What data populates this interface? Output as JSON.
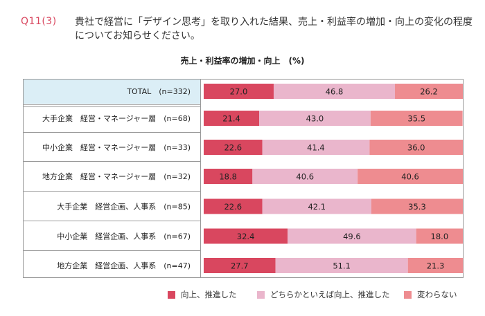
{
  "question": {
    "number": "Q11(3)",
    "text": "貴社で経営に「デザイン思考」を取り入れた結果、売上・利益率の増加・向上の変化の程度についてお知らせください。"
  },
  "colors": {
    "improved": "#d9475f",
    "somewhat": "#eab6cc",
    "unchanged": "#ee8c90",
    "grid": "#999999",
    "total_bg": "#dbeef6"
  },
  "chart_data": {
    "type": "bar",
    "orientation": "horizontal",
    "stacked": true,
    "title": "売上・利益率の増加・向上　(%)",
    "categories": [
      "TOTAL　(n=332)",
      "大手企業　経営・マネージャー層　(n=68)",
      "中小企業　経営・マネージャー層　(n=33)",
      "地方企業　経営・マネージャー層　(n=32)",
      "大手企業　経営企画、人事系　(n=85)",
      "中小企業　経営企画、人事系　(n=67)",
      "地方企業　経営企画、人事系　(n=47)"
    ],
    "series": [
      {
        "name": "向上、推進した",
        "values": [
          27.0,
          21.4,
          22.6,
          18.8,
          22.6,
          32.4,
          27.7
        ]
      },
      {
        "name": "どちらかといえば向上、推進した",
        "values": [
          46.8,
          43.0,
          41.4,
          40.6,
          42.1,
          49.6,
          51.1
        ]
      },
      {
        "name": "変わらない",
        "values": [
          26.2,
          35.5,
          36.0,
          40.6,
          35.3,
          18.0,
          21.3
        ]
      }
    ],
    "value_labels": [
      [
        "27.0",
        "21.4",
        "22.6",
        "18.8",
        "22.6",
        "32.4",
        "27.7"
      ],
      [
        "46.8",
        "43.0",
        "41.4",
        "40.6",
        "42.1",
        "49.6",
        "51.1"
      ],
      [
        "26.2",
        "35.5",
        "36.0",
        "40.6",
        "35.3",
        "18.0",
        "21.3"
      ]
    ],
    "xlim": [
      0,
      100
    ],
    "legend_position": "bottom"
  }
}
